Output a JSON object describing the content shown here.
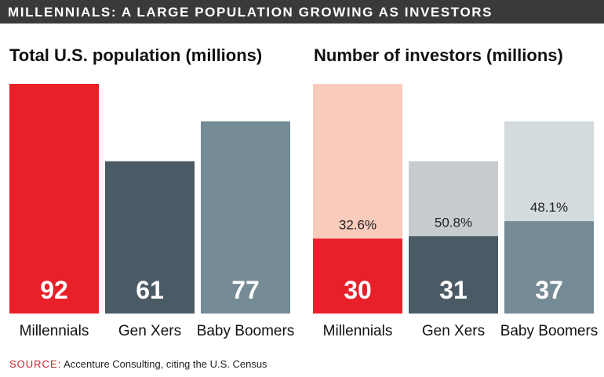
{
  "banner": {
    "title": "MILLENNIALS: A LARGE POPULATION GROWING AS INVESTORS"
  },
  "chart_data": [
    {
      "type": "bar",
      "title": "Total U.S. population (millions)",
      "categories": [
        "Millennials",
        "Gen Xers",
        "Baby Boomers"
      ],
      "values": [
        92,
        61,
        77
      ],
      "value_labels": [
        "92",
        "61",
        "77"
      ],
      "colors": [
        "#e8202a",
        "#4b5b66",
        "#758b96"
      ],
      "ylim": [
        0,
        92
      ],
      "grid": false
    },
    {
      "type": "bar",
      "title": "Number of investors (millions)",
      "categories": [
        "Millennials",
        "Gen Xers",
        "Baby Boomers"
      ],
      "values": [
        30,
        31,
        37
      ],
      "value_labels": [
        "30",
        "31",
        "37"
      ],
      "totals": [
        92,
        61,
        77
      ],
      "pct_labels": [
        "32.6%",
        "50.8%",
        "48.1%"
      ],
      "colors": [
        "#e8202a",
        "#4b5b66",
        "#758b96"
      ],
      "background_colors": [
        "#f8cbbd",
        "#c7ccce",
        "#d3dbdf"
      ],
      "ylim": [
        0,
        92
      ],
      "grid": false
    }
  ],
  "source": {
    "label": "SOURCE:",
    "text": "Accenture Consulting, citing the U.S. Census"
  }
}
